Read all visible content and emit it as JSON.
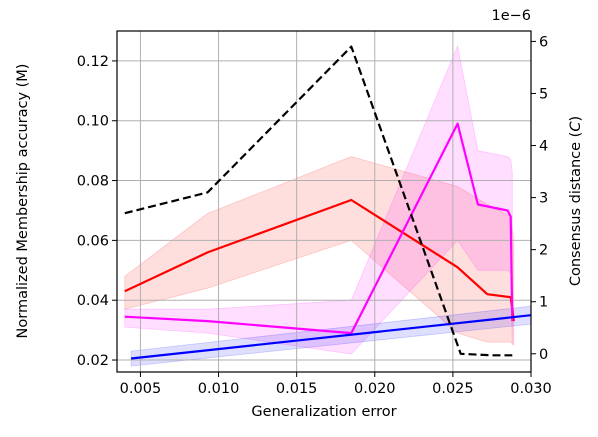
{
  "chart_data": {
    "type": "line",
    "xlabel": "Generalization error",
    "ylabel_left": "Normalized Membership accuracy (M)",
    "ylabel_right": "Consensus distance (C)",
    "ylabel_right_prefix": "Consensus distance (",
    "ylabel_right_symbol": "C",
    "ylabel_right_suffix": ")",
    "right_axis_offset_text": "1e−6",
    "xlim": [
      0.0035,
      0.03
    ],
    "ylim_left": [
      0.016,
      0.13
    ],
    "ylim_right": [
      -3.5e-07,
      6.2e-06
    ],
    "x_ticks": [
      0.005,
      0.01,
      0.015,
      0.02,
      0.025,
      0.03
    ],
    "x_tick_labels": [
      "0.005",
      "0.010",
      "0.015",
      "0.020",
      "0.025",
      "0.030"
    ],
    "y_left_ticks": [
      0.02,
      0.04,
      0.06,
      0.08,
      0.1,
      0.12
    ],
    "y_left_tick_labels": [
      "0.02",
      "0.04",
      "0.06",
      "0.08",
      "0.10",
      "0.12"
    ],
    "y_right_ticks": [
      0,
      1,
      2,
      3,
      4,
      5,
      6
    ],
    "y_right_tick_labels": [
      "0",
      "1",
      "2",
      "3",
      "4",
      "5",
      "6"
    ],
    "grid": true,
    "series": [
      {
        "axis": "left",
        "color": "#ff0000",
        "style": "solid",
        "x": [
          0.004,
          0.0093,
          0.0185,
          0.0253,
          0.0272,
          0.0287,
          0.0289
        ],
        "y": [
          0.043,
          0.056,
          0.0735,
          0.051,
          0.042,
          0.041,
          0.033
        ],
        "band_upper": [
          0.048,
          0.069,
          0.088,
          0.078,
          0.072,
          0.068,
          0.06
        ],
        "band_lower": [
          0.037,
          0.044,
          0.06,
          0.029,
          0.026,
          0.026,
          0.025
        ]
      },
      {
        "axis": "left",
        "color": "#ff00ff",
        "style": "solid",
        "x": [
          0.004,
          0.0093,
          0.0185,
          0.0253,
          0.0266,
          0.0285,
          0.0287,
          0.0288
        ],
        "y": [
          0.0345,
          0.033,
          0.029,
          0.099,
          0.072,
          0.07,
          0.068,
          0.033
        ],
        "band_upper": [
          0.037,
          0.037,
          0.04,
          0.125,
          0.09,
          0.088,
          0.087,
          0.083
        ],
        "band_lower": [
          0.031,
          0.029,
          0.022,
          0.06,
          0.05,
          0.05,
          0.049,
          0.025
        ]
      },
      {
        "axis": "left",
        "color": "#0000ff",
        "style": "solid",
        "x": [
          0.0044,
          0.03
        ],
        "y": [
          0.0205,
          0.035
        ],
        "band_upper": [
          0.023,
          0.038
        ],
        "band_lower": [
          0.018,
          0.032
        ]
      },
      {
        "axis": "right",
        "color": "#000000",
        "style": "dashed",
        "x": [
          0.004,
          0.0093,
          0.0185,
          0.0255,
          0.0275,
          0.0288
        ],
        "y": [
          2.7e-06,
          3.1e-06,
          5.9e-06,
          0.0,
          -3e-08,
          -3e-08
        ]
      }
    ]
  }
}
